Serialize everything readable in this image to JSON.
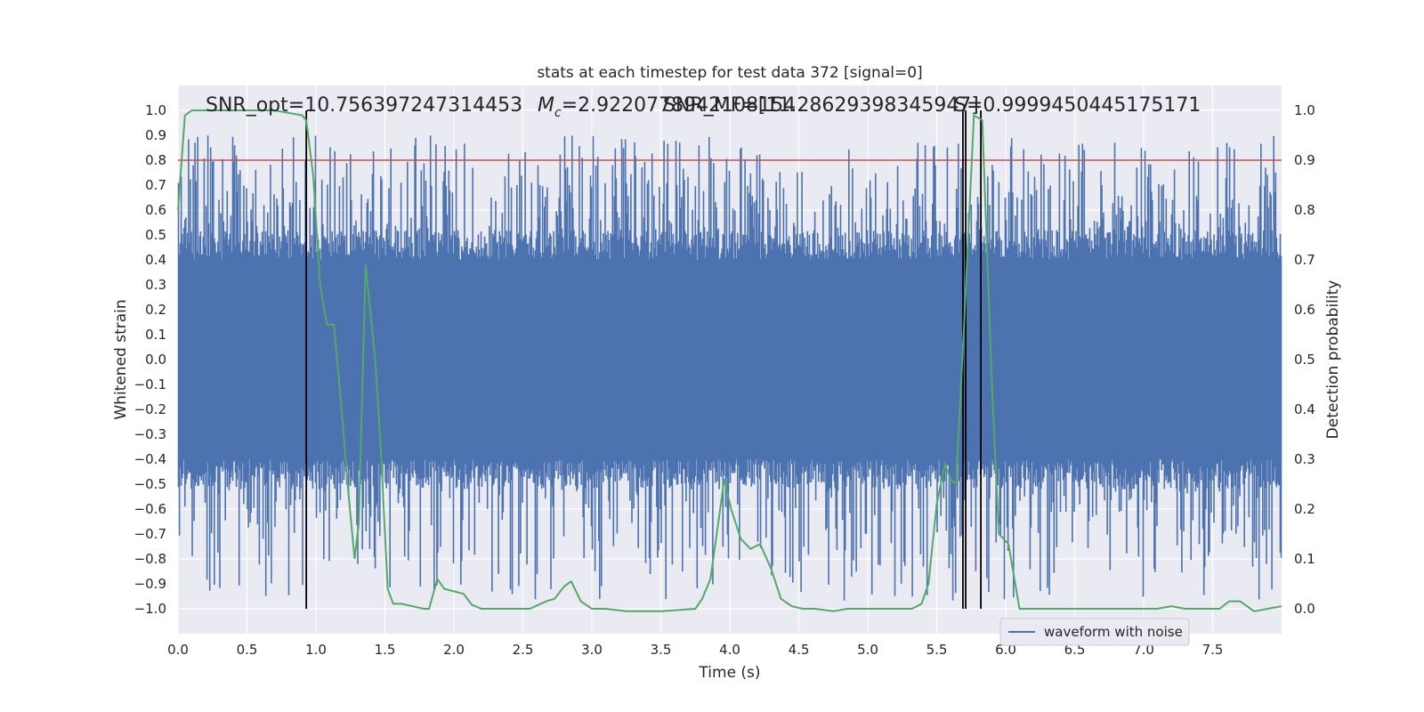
{
  "chart_data": {
    "type": "line",
    "title": "stats at each timestep for test data 372 [signal=0]",
    "xlabel": "Time (s)",
    "ylabel_left": "Whitened strain",
    "ylabel_right": "Detection probability",
    "xlim": [
      0.0,
      8.0
    ],
    "ylim_left": [
      -1.1,
      1.1
    ],
    "ylim_right": [
      -0.05,
      1.05
    ],
    "xticks": [
      "0.0",
      "0.5",
      "1.0",
      "1.5",
      "2.0",
      "2.5",
      "3.0",
      "3.5",
      "4.0",
      "4.5",
      "5.0",
      "5.5",
      "6.0",
      "6.5",
      "7.0",
      "7.5"
    ],
    "yticks_left": [
      "1.0",
      "0.9",
      "0.8",
      "0.7",
      "0.6",
      "0.5",
      "0.4",
      "0.3",
      "0.2",
      "0.1",
      "0.0",
      "-0.1",
      "-0.2",
      "-0.3",
      "-0.4",
      "-0.5",
      "-0.6",
      "-0.7",
      "-0.8",
      "-0.9",
      "-1.0"
    ],
    "yticks_right": [
      "1.0",
      "0.9",
      "0.8",
      "0.7",
      "0.6",
      "0.5",
      "0.4",
      "0.3",
      "0.2",
      "0.1",
      "0.0"
    ],
    "grid": true,
    "legend": {
      "placement": "bottom-right",
      "entries": [
        "waveform with noise"
      ]
    },
    "annotations": {
      "snr_opt": "SNR_opt=10.756397247314453",
      "mc": "=2.9220778942108154",
      "mc_symbol": "M",
      "mc_sub": "c",
      "snr_mf": "SNR_MF=[11.28629398345947]",
      "s": "S=0.9999450445175171"
    },
    "threshold": {
      "right_value": 0.9,
      "color": "#c44e52"
    },
    "vertical_markers_s": [
      0.93,
      5.69,
      5.71,
      5.82
    ],
    "colors": {
      "waveform": "#4c72b0",
      "probability": "#55a868",
      "threshold": "#c44e52",
      "marker": "#000000",
      "background": "#eaeaf2",
      "grid": "#ffffff"
    },
    "series": [
      {
        "name": "waveform with noise",
        "axis": "left",
        "style": "noise",
        "sample_count": 1200,
        "core_amplitude": 0.4,
        "peak_range": [
          -0.97,
          0.9
        ]
      },
      {
        "axis": "right",
        "x": [
          0.0,
          0.05,
          0.1,
          0.5,
          0.7,
          0.8,
          0.9,
          0.93,
          0.98,
          1.03,
          1.08,
          1.13,
          1.18,
          1.23,
          1.28,
          1.31,
          1.36,
          1.43,
          1.47,
          1.52,
          1.56,
          1.62,
          1.7,
          1.78,
          1.82,
          1.88,
          1.93,
          2.0,
          2.07,
          2.13,
          2.2,
          2.27,
          2.33,
          2.45,
          2.55,
          2.67,
          2.73,
          2.8,
          2.85,
          2.92,
          3.0,
          3.1,
          3.25,
          3.5,
          3.75,
          3.8,
          3.86,
          3.92,
          3.96,
          4.01,
          4.08,
          4.15,
          4.22,
          4.3,
          4.37,
          4.45,
          4.53,
          4.62,
          4.75,
          4.85,
          5.0,
          5.2,
          5.32,
          5.39,
          5.44,
          5.5,
          5.56,
          5.6,
          5.64,
          5.7,
          5.77,
          5.83,
          5.9,
          5.95,
          6.02,
          6.1,
          6.2,
          6.35,
          6.6,
          6.9,
          7.1,
          7.2,
          7.3,
          7.45,
          7.55,
          7.62,
          7.7,
          7.8,
          7.9,
          8.0
        ],
        "y": [
          0.8,
          0.99,
          1.0,
          1.0,
          1.0,
          0.995,
          0.99,
          0.98,
          0.87,
          0.65,
          0.57,
          0.57,
          0.42,
          0.25,
          0.1,
          0.17,
          0.69,
          0.5,
          0.32,
          0.04,
          0.01,
          0.01,
          0.005,
          0.0,
          0.0,
          0.06,
          0.04,
          0.035,
          0.03,
          0.008,
          0.0,
          0.0,
          0.0,
          0.0,
          0.0,
          0.015,
          0.02,
          0.045,
          0.055,
          0.015,
          0.0,
          0.0,
          -0.005,
          -0.005,
          0.0,
          0.02,
          0.06,
          0.18,
          0.26,
          0.2,
          0.14,
          0.12,
          0.13,
          0.08,
          0.02,
          0.005,
          0.0,
          0.0,
          -0.005,
          0.0,
          0.0,
          0.0,
          0.0,
          0.01,
          0.05,
          0.21,
          0.29,
          0.26,
          0.25,
          0.58,
          0.99,
          0.98,
          0.45,
          0.15,
          0.13,
          0.0,
          0.0,
          0.0,
          0.0,
          0.0,
          0.0,
          0.005,
          0.0,
          0.0,
          0.0,
          0.015,
          0.015,
          -0.005,
          0.0,
          0.005
        ]
      }
    ]
  }
}
